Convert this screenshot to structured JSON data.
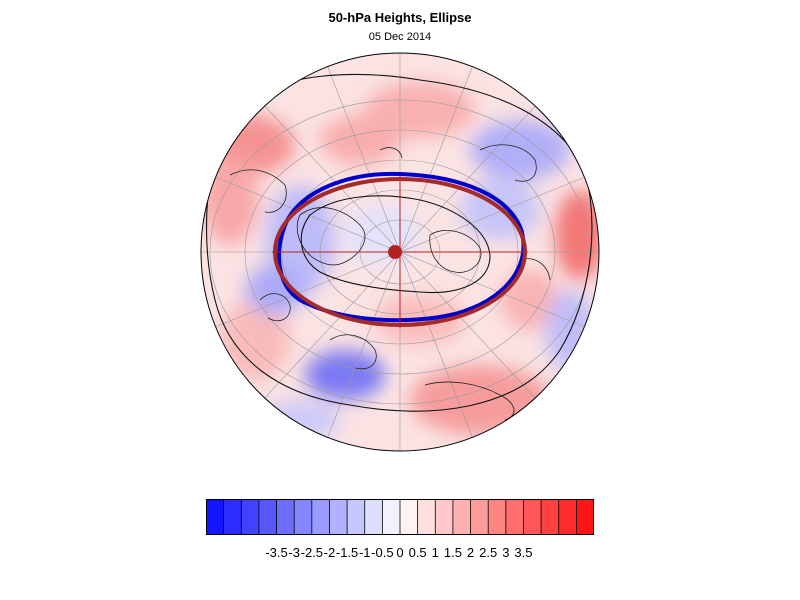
{
  "title": "50-hPa Heights, Ellipse",
  "subtitle": "05 Dec 2014",
  "map": {
    "projection": "north-polar-stereographic",
    "field": "50-hPa height anomaly",
    "fitted_ellipse_color": "#a52a2a",
    "observed_contour_color": "#0000cc",
    "center_marker_color": "#b22222"
  },
  "colorbar": {
    "colors": [
      "#1515ff",
      "#2c2cff",
      "#4141ff",
      "#5757ff",
      "#6d6dff",
      "#8585ff",
      "#9b9bff",
      "#b1b1ff",
      "#c7c7ff",
      "#dddffe",
      "#f2f2ff",
      "#fff2f2",
      "#ffdfdf",
      "#ffc7c7",
      "#ffb1b1",
      "#ff9b9b",
      "#ff8585",
      "#ff6d6d",
      "#ff5757",
      "#ff4141",
      "#ff2c2c",
      "#ff1515"
    ],
    "labels": [
      "-3.5",
      "-3",
      "-2.5",
      "-2",
      "-1.5",
      "-1",
      "-0.5",
      "0",
      "0.5",
      "1",
      "1.5",
      "2",
      "2.5",
      "3",
      "3.5"
    ]
  }
}
